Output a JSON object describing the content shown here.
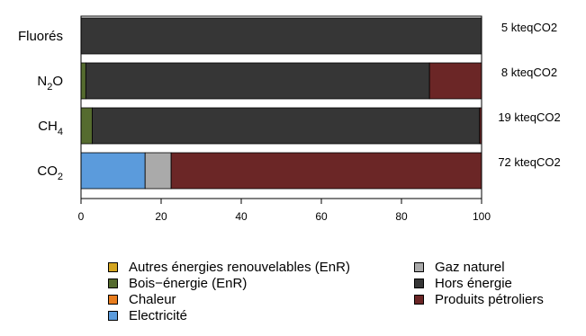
{
  "chart_data": {
    "type": "bar",
    "orientation": "horizontal",
    "stacked": true,
    "categories": [
      "CO2",
      "CH4",
      "N2O",
      "Fluorés"
    ],
    "category_labels": [
      {
        "base": "CO",
        "sub": "2"
      },
      {
        "base": "CH",
        "sub": "4"
      },
      {
        "base": "N",
        "sub": "2",
        "tail": "O"
      },
      {
        "base": "Fluorés",
        "sub": ""
      }
    ],
    "totals": [
      "72 kteqCO2",
      "19 kteqCO2",
      "8 kteqCO2",
      "5 kteqCO2"
    ],
    "xlim": [
      0,
      100
    ],
    "xticks": [
      "0",
      "20",
      "40",
      "60",
      "80",
      "100"
    ],
    "xlabel": "",
    "ylabel": "",
    "grid": false,
    "legend_position": "bottom",
    "series": [
      {
        "name": "Autres énergies renouvelables (EnR)",
        "color": "#D4A520",
        "values": [
          0,
          0,
          0,
          0
        ]
      },
      {
        "name": "Bois−énergie (EnR)",
        "color": "#556B2F",
        "values": [
          0,
          2.8,
          1.2,
          0
        ]
      },
      {
        "name": "Chaleur",
        "color": "#E87D1E",
        "values": [
          0,
          0,
          0,
          0
        ]
      },
      {
        "name": "Electricité",
        "color": "#5B9BDC",
        "values": [
          16,
          0,
          0,
          0
        ]
      },
      {
        "name": "Gaz naturel",
        "color": "#AAAAAA",
        "values": [
          6.5,
          0,
          0,
          0
        ]
      },
      {
        "name": "Hors énergie",
        "color": "#363636",
        "values": [
          0,
          96.7,
          85.8,
          100
        ]
      },
      {
        "name": "Produits pétroliers",
        "color": "#6B2626",
        "values": [
          77.5,
          0.5,
          13,
          0
        ]
      }
    ]
  }
}
